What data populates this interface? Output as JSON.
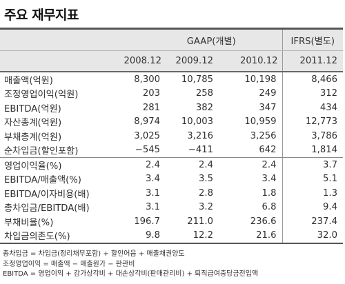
{
  "title": "주요 재무지표",
  "header": {
    "group_gaap": "GAAP(개별)",
    "group_ifrs": "IFRS(별도)",
    "periods": [
      "2008.12",
      "2009.12",
      "2010.12",
      "2011.12"
    ]
  },
  "rows": [
    {
      "label": "매출액(억원)",
      "values": [
        "8,300",
        "10,785",
        "10,198",
        "8,466"
      ]
    },
    {
      "label": "조정영업이익(억원)",
      "values": [
        "203",
        "258",
        "249",
        "312"
      ]
    },
    {
      "label": "EBITDA(억원)",
      "values": [
        "281",
        "382",
        "347",
        "434"
      ]
    },
    {
      "label": "자산총계(억원)",
      "values": [
        "8,974",
        "10,003",
        "10,959",
        "12,773"
      ]
    },
    {
      "label": "부채총계(억원)",
      "values": [
        "3,025",
        "3,216",
        "3,256",
        "3,786"
      ]
    },
    {
      "label": "순차입금(할인포함)",
      "values": [
        "−545",
        "−411",
        "642",
        "1,814"
      ]
    },
    {
      "label": "영업이익율(%)",
      "values": [
        "2.4",
        "2.4",
        "2.4",
        "3.7"
      ]
    },
    {
      "label": "EBITDA/매출액(%)",
      "values": [
        "3.4",
        "3.5",
        "3.4",
        "5.1"
      ]
    },
    {
      "label": "EBITDA/이자비용(배)",
      "values": [
        "3.1",
        "2.8",
        "1.8",
        "1.3"
      ]
    },
    {
      "label": "총차입금/EBITDA(배)",
      "values": [
        "3.1",
        "3.2",
        "6.8",
        "9.4"
      ]
    },
    {
      "label": "부채비율(%)",
      "values": [
        "196.7",
        "211.0",
        "236.6",
        "237.4"
      ]
    },
    {
      "label": "차입금의존도(%)",
      "values": [
        "9.8",
        "12.2",
        "21.6",
        "32.0"
      ]
    }
  ],
  "notes": [
    "총차입금 = 차입금(정리채무포함) + 할인어음 + 매출채권양도",
    "조정영업이익 = 매출액 − 매출원가 − 판관비",
    "EBITDA = 영업이익 + 감가상각비 + 대손상각비(판매관리비) + 퇴직급여충당금전입액"
  ]
}
